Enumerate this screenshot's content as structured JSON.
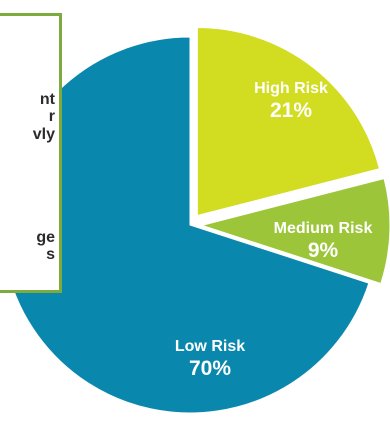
{
  "chart_data": {
    "type": "pie",
    "title": "",
    "slices": [
      {
        "label": "High Risk",
        "value": 21,
        "value_label": "21%",
        "color": "#d2dd22"
      },
      {
        "label": "Medium Risk",
        "value": 9,
        "value_label": "9%",
        "color": "#9cc53a"
      },
      {
        "label": "Low Risk",
        "value": 70,
        "value_label": "70%",
        "color": "#0a87ad"
      }
    ],
    "exploded_slices": [
      "High Risk",
      "Medium Risk"
    ],
    "legend": "none"
  },
  "callout": {
    "lines": [
      "nt",
      "r",
      "vly",
      "ge",
      "s"
    ],
    "border_color": "#7eab3e"
  }
}
